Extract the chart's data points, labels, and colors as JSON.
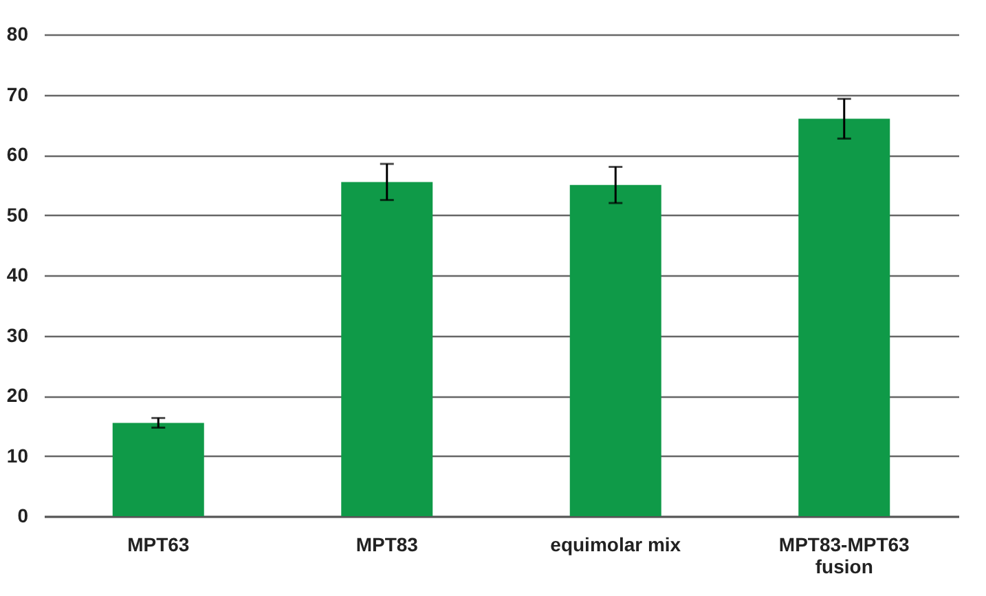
{
  "chart_data": {
    "type": "bar",
    "categories": [
      "MPT63",
      "MPT83",
      "equimolar mix",
      "MPT83-MPT63 fusion"
    ],
    "values": [
      15.5,
      55.5,
      55,
      66
    ],
    "errors": [
      0.8,
      3,
      3,
      3.3
    ],
    "color": "#0f9a48",
    "ylim": [
      0,
      80
    ],
    "yticks": [
      0,
      10,
      20,
      30,
      40,
      50,
      60,
      70,
      80
    ],
    "grid": true
  }
}
